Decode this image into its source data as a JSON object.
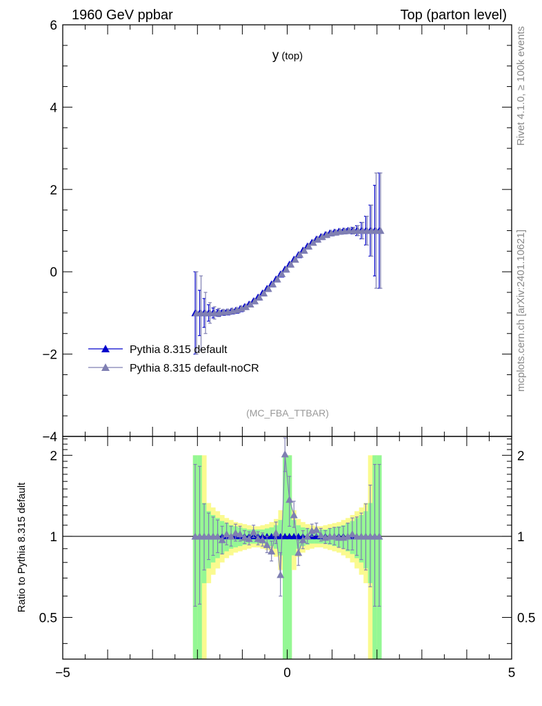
{
  "header": {
    "left_label": "1960 GeV ppbar",
    "right_label": "Top (parton level)"
  },
  "side_labels": {
    "rivet": "Rivet 4.1.0, ≥ 100k events",
    "mcplots": "mcplots.cern.ch [arXiv:2401.10621]"
  },
  "analysis_label": "(MC_FBA_TTBAR)",
  "colors": {
    "default": "#0000cc",
    "nocr": "#7f7fb2",
    "band_inner": "#94f794",
    "band_outer": "#fafa8f",
    "axis": "#000000",
    "grey_text": "#888888"
  },
  "chart_data": [
    {
      "type": "line",
      "title": "y",
      "title_sub": "(top)",
      "xlim": [
        -5,
        5
      ],
      "ylim": [
        -4,
        6
      ],
      "yticks": [
        -4,
        -2,
        0,
        2,
        4,
        6
      ],
      "ytick_labels": [
        "−4",
        "−2",
        "0",
        "2",
        "4",
        "6"
      ],
      "legend": {
        "placement": "lower-left",
        "entries": [
          "Pythia 8.315 default",
          "Pythia 8.315 default-noCR"
        ]
      },
      "series": [
        {
          "name": "Pythia 8.315 default",
          "x": [
            -2.05,
            -1.95,
            -1.85,
            -1.75,
            -1.65,
            -1.55,
            -1.45,
            -1.35,
            -1.25,
            -1.15,
            -1.05,
            -0.95,
            -0.85,
            -0.75,
            -0.65,
            -0.55,
            -0.45,
            -0.35,
            -0.25,
            -0.15,
            -0.05,
            0.05,
            0.15,
            0.25,
            0.35,
            0.45,
            0.55,
            0.65,
            0.75,
            0.85,
            0.95,
            1.05,
            1.15,
            1.25,
            1.35,
            1.45,
            1.55,
            1.65,
            1.75,
            1.85,
            1.95,
            2.05
          ],
          "y": [
            -1.0,
            -1.0,
            -1.0,
            -1.0,
            -1.0,
            -1.0,
            -0.99,
            -0.98,
            -0.96,
            -0.94,
            -0.9,
            -0.85,
            -0.79,
            -0.71,
            -0.62,
            -0.52,
            -0.41,
            -0.3,
            -0.18,
            -0.06,
            0.06,
            0.18,
            0.3,
            0.41,
            0.52,
            0.62,
            0.71,
            0.79,
            0.85,
            0.9,
            0.94,
            0.96,
            0.98,
            0.99,
            1.0,
            1.0,
            1.0,
            1.0,
            1.0,
            1.0,
            1.0,
            1.0
          ],
          "err": [
            1.0,
            0.55,
            0.35,
            0.2,
            0.12,
            0.08,
            0.05,
            0.04,
            0.03,
            0.03,
            0.02,
            0.02,
            0.02,
            0.02,
            0.02,
            0.02,
            0.02,
            0.02,
            0.02,
            0.02,
            0.02,
            0.02,
            0.02,
            0.02,
            0.02,
            0.02,
            0.02,
            0.02,
            0.02,
            0.02,
            0.02,
            0.03,
            0.03,
            0.04,
            0.05,
            0.08,
            0.12,
            0.2,
            0.35,
            0.62,
            1.1,
            1.4
          ]
        },
        {
          "name": "Pythia 8.315 default-noCR",
          "x": [
            -2.05,
            -1.95,
            -1.85,
            -1.75,
            -1.65,
            -1.55,
            -1.45,
            -1.35,
            -1.25,
            -1.15,
            -1.05,
            -0.95,
            -0.85,
            -0.75,
            -0.65,
            -0.55,
            -0.45,
            -0.35,
            -0.25,
            -0.15,
            -0.05,
            0.05,
            0.15,
            0.25,
            0.35,
            0.45,
            0.55,
            0.65,
            0.75,
            0.85,
            0.95,
            1.05,
            1.15,
            1.25,
            1.35,
            1.45,
            1.55,
            1.65,
            1.75,
            1.85,
            1.95,
            2.05
          ],
          "y": [
            -1.0,
            -1.0,
            -1.0,
            -1.0,
            -1.0,
            -0.99,
            -0.98,
            -0.97,
            -0.95,
            -0.93,
            -0.89,
            -0.85,
            -0.79,
            -0.71,
            -0.62,
            -0.52,
            -0.41,
            -0.3,
            -0.18,
            -0.05,
            0.06,
            0.18,
            0.3,
            0.42,
            0.52,
            0.62,
            0.71,
            0.79,
            0.85,
            0.9,
            0.94,
            0.96,
            0.98,
            0.99,
            1.0,
            1.0,
            1.0,
            1.0,
            1.0,
            1.0,
            1.0,
            1.0
          ],
          "err": [
            1.0,
            0.9,
            0.5,
            0.25,
            0.15,
            0.1,
            0.06,
            0.05,
            0.04,
            0.03,
            0.03,
            0.02,
            0.02,
            0.02,
            0.02,
            0.02,
            0.02,
            0.02,
            0.02,
            0.02,
            0.02,
            0.02,
            0.02,
            0.02,
            0.02,
            0.02,
            0.02,
            0.02,
            0.02,
            0.02,
            0.02,
            0.03,
            0.03,
            0.04,
            0.05,
            0.08,
            0.12,
            0.2,
            0.35,
            0.62,
            1.4,
            1.4
          ]
        }
      ]
    },
    {
      "type": "line",
      "ylabel": "Ratio to Pythia 8.315 default",
      "xlim": [
        -5,
        5
      ],
      "ylim": [
        0.35,
        2.35
      ],
      "log_y": true,
      "yticks": [
        0.5,
        1,
        2
      ],
      "ytick_labels": [
        "0.5",
        "1",
        "2"
      ],
      "xticks": [
        -5,
        0,
        5
      ],
      "xtick_labels": [
        "−5",
        "0",
        "5"
      ],
      "reference_line": 1,
      "band": {
        "x_low": [
          -2.1,
          -2.0,
          -1.9,
          -1.8,
          -1.7,
          -1.6,
          -1.5,
          -1.4,
          -1.3,
          -1.2,
          -1.1,
          -1.0,
          -0.9,
          -0.8,
          -0.7,
          -0.6,
          -0.5,
          -0.4,
          -0.3,
          -0.2,
          -0.1,
          0.0,
          0.1,
          0.2,
          0.3,
          0.4,
          0.5,
          0.6,
          0.7,
          0.8,
          0.9,
          1.0,
          1.1,
          1.2,
          1.3,
          1.4,
          1.5,
          1.6,
          1.7,
          1.8,
          1.9,
          2.0
        ],
        "inner_half": [
          1.0,
          1.0,
          0.33,
          0.24,
          0.2,
          0.17,
          0.14,
          0.12,
          0.1,
          0.09,
          0.08,
          0.07,
          0.06,
          0.06,
          0.06,
          0.06,
          0.07,
          0.08,
          0.1,
          0.15,
          1.0,
          1.0,
          0.15,
          0.1,
          0.08,
          0.07,
          0.06,
          0.06,
          0.06,
          0.06,
          0.07,
          0.08,
          0.09,
          0.1,
          0.12,
          0.14,
          0.17,
          0.2,
          0.24,
          0.33,
          1.0,
          1.0
        ],
        "outer_half": [
          1.0,
          1.0,
          1.0,
          0.33,
          0.28,
          0.24,
          0.2,
          0.17,
          0.15,
          0.13,
          0.12,
          0.11,
          0.1,
          0.09,
          0.09,
          0.1,
          0.11,
          0.13,
          0.16,
          0.25,
          1.0,
          1.0,
          0.25,
          0.16,
          0.13,
          0.11,
          0.1,
          0.09,
          0.09,
          0.1,
          0.11,
          0.12,
          0.13,
          0.15,
          0.17,
          0.2,
          0.24,
          0.28,
          0.33,
          1.0,
          1.0,
          1.0
        ]
      },
      "series": [
        {
          "name": "Pythia 8.315 default",
          "x": [
            -2.05,
            -1.95,
            -1.85,
            -1.75,
            -1.65,
            -1.55,
            -1.45,
            -1.35,
            -1.25,
            -1.15,
            -1.05,
            -0.95,
            -0.85,
            -0.75,
            -0.65,
            -0.55,
            -0.45,
            -0.35,
            -0.25,
            -0.15,
            -0.05,
            0.05,
            0.15,
            0.25,
            0.35,
            0.45,
            0.55,
            0.65,
            0.75,
            0.85,
            0.95,
            1.05,
            1.15,
            1.25,
            1.35,
            1.45,
            1.55,
            1.65,
            1.75,
            1.85,
            1.95,
            2.05
          ],
          "y": [
            1,
            1,
            1,
            1,
            1,
            1,
            1,
            1,
            1,
            1,
            1,
            1,
            1,
            1,
            1,
            1,
            1,
            1,
            1,
            1,
            1,
            1,
            1,
            1,
            1,
            1,
            1,
            1,
            1,
            1,
            1,
            1,
            1,
            1,
            1,
            1,
            1,
            1,
            1,
            1,
            1,
            1
          ]
        },
        {
          "name": "Pythia 8.315 default-noCR",
          "x": [
            -2.05,
            -1.95,
            -1.85,
            -1.75,
            -1.65,
            -1.55,
            -1.45,
            -1.35,
            -1.25,
            -1.15,
            -1.05,
            -0.95,
            -0.85,
            -0.75,
            -0.65,
            -0.55,
            -0.45,
            -0.35,
            -0.25,
            -0.15,
            -0.05,
            0.05,
            0.15,
            0.25,
            0.35,
            0.45,
            0.55,
            0.65,
            0.75,
            0.85,
            0.95,
            1.05,
            1.15,
            1.25,
            1.35,
            1.45,
            1.55,
            1.65,
            1.75,
            1.85,
            1.95,
            2.05
          ],
          "y": [
            1.0,
            1.0,
            1.0,
            1.0,
            1.0,
            1.0,
            0.97,
            1.02,
            1.0,
            1.03,
            1.02,
            0.99,
            0.98,
            1.04,
            0.98,
            0.97,
            0.93,
            0.88,
            1.03,
            0.72,
            2.02,
            1.37,
            1.2,
            0.87,
            0.97,
            1.0,
            1.05,
            1.06,
            1.01,
            0.99,
            1.0,
            1.0,
            0.99,
            0.99,
            1.0,
            1.02,
            1.0,
            1.0,
            1.0,
            1.0,
            1.0,
            1.0
          ],
          "err_up": [
            0.85,
            0.82,
            0.32,
            0.22,
            0.18,
            0.15,
            0.12,
            0.1,
            0.09,
            0.08,
            0.07,
            0.06,
            0.06,
            0.06,
            0.06,
            0.06,
            0.07,
            0.08,
            0.1,
            0.15,
            0.3,
            0.3,
            0.15,
            0.1,
            0.08,
            0.07,
            0.06,
            0.06,
            0.06,
            0.06,
            0.07,
            0.08,
            0.09,
            0.1,
            0.12,
            0.15,
            0.18,
            0.22,
            0.32,
            0.55,
            0.85,
            0.85
          ],
          "err_down": [
            0.45,
            0.44,
            0.25,
            0.18,
            0.15,
            0.13,
            0.11,
            0.09,
            0.08,
            0.07,
            0.06,
            0.05,
            0.05,
            0.05,
            0.05,
            0.05,
            0.06,
            0.07,
            0.09,
            0.12,
            0.28,
            0.28,
            0.12,
            0.09,
            0.07,
            0.06,
            0.05,
            0.05,
            0.05,
            0.05,
            0.06,
            0.07,
            0.08,
            0.09,
            0.11,
            0.13,
            0.15,
            0.18,
            0.25,
            0.35,
            0.45,
            0.45
          ]
        }
      ]
    }
  ]
}
